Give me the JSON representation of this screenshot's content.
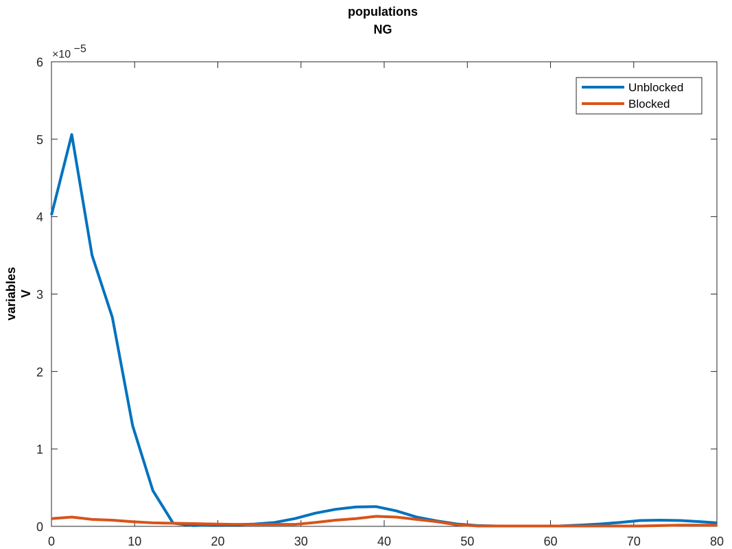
{
  "chart_data": {
    "type": "line",
    "title": [
      "populations",
      "NG"
    ],
    "ylabel": [
      "variables",
      "V"
    ],
    "xlabel": "",
    "xlim": [
      0,
      80
    ],
    "ylim": [
      0,
      6e-05
    ],
    "xticks": [
      0,
      10,
      20,
      30,
      40,
      50,
      60,
      70,
      80
    ],
    "yticks": [
      0,
      1,
      2,
      3,
      4,
      5,
      6
    ],
    "y_exponent_label": "×10",
    "y_exponent_power": "−5",
    "y_scale_factor": 1e-05,
    "grid": false,
    "legend_position": "top-right",
    "x": [
      0,
      2.44,
      4.88,
      7.32,
      9.76,
      12.2,
      14.63,
      17.07,
      19.51,
      21.95,
      24.39,
      26.83,
      29.27,
      31.71,
      34.15,
      36.59,
      39.02,
      41.46,
      43.9,
      46.34,
      48.78,
      51.22,
      53.66,
      56.1,
      58.54,
      60.98,
      63.41,
      65.85,
      68.29,
      70.73,
      73.17,
      75.61,
      78.05,
      80
    ],
    "series": [
      {
        "name": "Unblocked",
        "color": "#0072BD",
        "values": [
          4.02e-05,
          5.06e-05,
          3.5e-05,
          2.7e-05,
          1.3e-05,
          4.6e-06,
          4e-07,
          1e-07,
          2e-07,
          2e-07,
          3e-07,
          5e-07,
          1e-06,
          1.7e-06,
          2.2e-06,
          2.5e-06,
          2.55e-06,
          2e-06,
          1.2e-06,
          7e-07,
          3e-07,
          1e-07,
          5e-08,
          5e-08,
          5e-08,
          5e-08,
          1.5e-07,
          3e-07,
          5e-07,
          7.5e-07,
          8e-07,
          7.5e-07,
          6e-07,
          4.5e-07
        ]
      },
      {
        "name": "Blocked",
        "color": "#D95319",
        "values": [
          1e-06,
          1.2e-06,
          9e-07,
          8e-07,
          6e-07,
          4.5e-07,
          4e-07,
          3.5e-07,
          3e-07,
          2.5e-07,
          2.5e-07,
          2.5e-07,
          2.5e-07,
          5e-07,
          8e-07,
          1e-06,
          1.3e-06,
          1.2e-06,
          9e-07,
          6e-07,
          2e-07,
          5e-08,
          5e-08,
          5e-08,
          5e-08,
          5e-08,
          5e-08,
          5e-08,
          5e-08,
          5e-08,
          1e-07,
          1.5e-07,
          1.5e-07,
          1.5e-07
        ]
      }
    ]
  }
}
